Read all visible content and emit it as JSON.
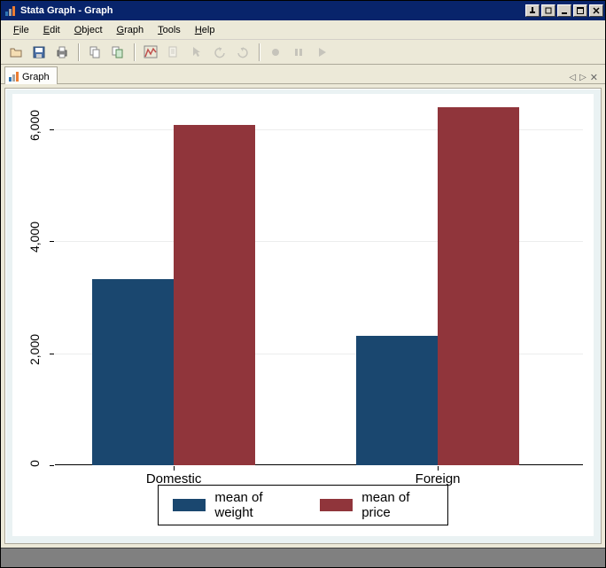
{
  "window": {
    "title": "Stata Graph - Graph"
  },
  "menu": {
    "file": "File",
    "edit": "Edit",
    "object": "Object",
    "graph": "Graph",
    "tools": "Tools",
    "help": "Help"
  },
  "tab": {
    "label": "Graph"
  },
  "chart": {
    "type": "bar",
    "background_color": "#eaf2f3",
    "plot_background": "#ffffff",
    "grid_color": "#eceded",
    "axis_color": "#000000",
    "ymin": 0,
    "ymax": 6500,
    "yticks": [
      0,
      2000,
      4000,
      6000
    ],
    "ytick_labels": [
      "0",
      "2,000",
      "4,000",
      "6,000"
    ],
    "ytick_fontsize": 14,
    "categories": [
      "Domestic",
      "Foreign"
    ],
    "category_fontsize": 15,
    "series": [
      {
        "name": "mean of weight",
        "color": "#1a476f",
        "values": [
          3317,
          2316
        ]
      },
      {
        "name": "mean of price",
        "color": "#90353b",
        "values": [
          6072,
          6385
        ]
      }
    ],
    "bar_width_pct": 15.5,
    "group_positions_pct": [
      7,
      57
    ],
    "legend_fontsize": 15
  }
}
